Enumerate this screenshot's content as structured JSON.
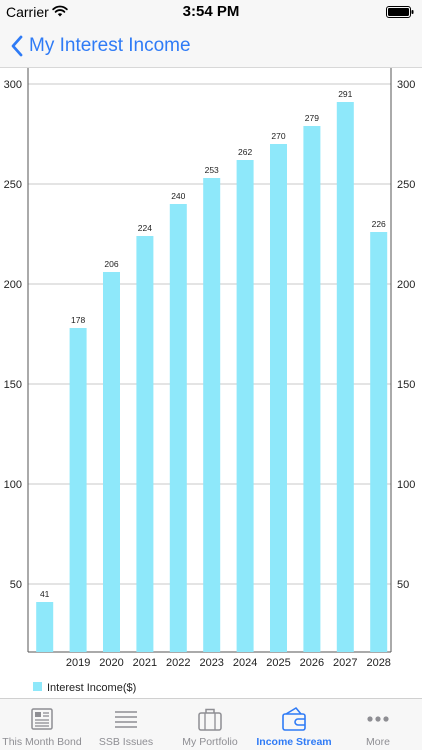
{
  "status_bar": {
    "carrier": "Carrier",
    "time": "3:54 PM"
  },
  "nav": {
    "title": "My Interest Income"
  },
  "colors": {
    "accent": "#2f7bf6",
    "bar": "#8ee8fa",
    "tab_inactive": "#8e8e93"
  },
  "chart_data": {
    "type": "bar",
    "categories": [
      "",
      "2019",
      "2020",
      "2021",
      "2022",
      "2023",
      "2024",
      "2025",
      "2026",
      "2027",
      "2028"
    ],
    "series": [
      {
        "name": "Interest Income($)",
        "values": [
          41,
          178,
          206,
          224,
          240,
          253,
          262,
          270,
          279,
          291,
          226
        ]
      }
    ],
    "yticks": [
      "50",
      "100",
      "150",
      "200",
      "250",
      "300"
    ],
    "ylim": [
      16,
      308
    ],
    "grid": true,
    "dual_y_axis": true,
    "legend_position": "bottom-left"
  },
  "tabs": [
    {
      "label": "This Month Bond",
      "icon": "newspaper-icon",
      "active": false
    },
    {
      "label": "SSB Issues",
      "icon": "list-icon",
      "active": false
    },
    {
      "label": "My Portfolio",
      "icon": "briefcase-icon",
      "active": false
    },
    {
      "label": "Income Stream",
      "icon": "wallet-icon",
      "active": true
    },
    {
      "label": "More",
      "icon": "more-icon",
      "active": false
    }
  ]
}
